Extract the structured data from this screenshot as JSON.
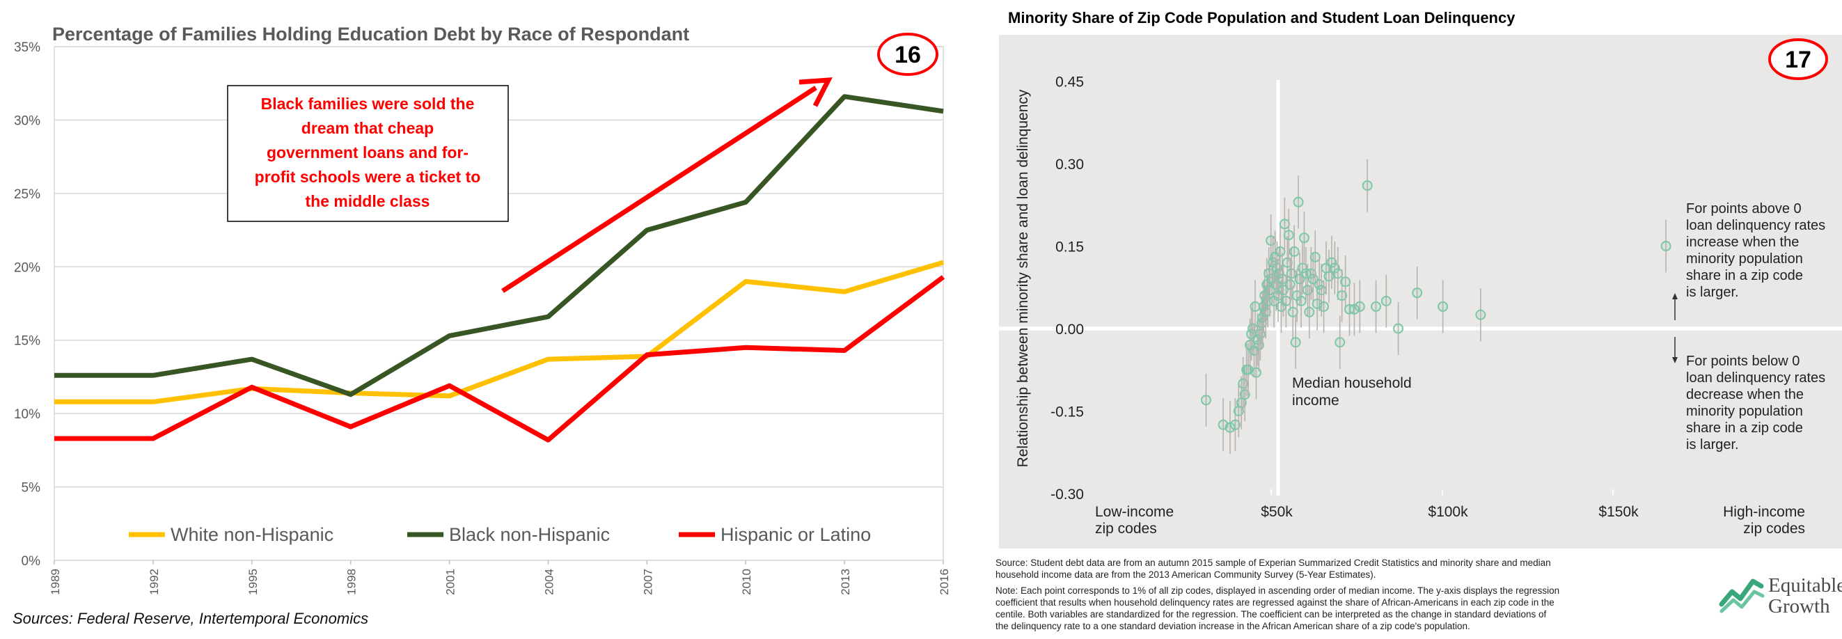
{
  "left": {
    "title": "Percentage of Families Holding Education Debt by Race of Respondant",
    "badge": "16",
    "annotation_lines": [
      "Black families were sold the",
      "dream that cheap",
      "government loans and for-",
      "profit schools were a ticket to",
      "the middle class"
    ],
    "sources": "Sources: Federal Reserve, Intertemporal Economics",
    "colors": {
      "white": "#FFC000",
      "black": "#375623",
      "hispanic": "#FF0000",
      "arrow": "#FF0000"
    }
  },
  "right": {
    "title": "Minority Share of Zip Code Population and Student Loan Delinquency",
    "badge": "17",
    "median_label_lines": [
      "Median household",
      "income"
    ],
    "above_note_lines": [
      "For points above 0",
      "loan delinquency rates",
      "increase when the",
      "minority population",
      "share in a zip code",
      "is larger."
    ],
    "below_note_lines": [
      "For points below 0",
      "loan delinquency rates",
      "decrease when the",
      "minority population",
      "share in a zip code",
      "is larger."
    ],
    "source_lines": [
      "Source: Student debt data are from an autumn 2015 sample of Experian Summarized Credit Statistics and minority share and median",
      "household income data are from the 2013 American Community Survey (5-Year Estimates)."
    ],
    "note_lines": [
      "Note: Each point corresponds to 1% of all zip codes, displayed in ascending order of median income. The y-axis displays the regression",
      "coefficient that results when household delinquency rates are regressed against the share of African-Americans in each zip code in the",
      "centile. Both variables are standardized for the regression. The coefficient can be interpreted as the change in standard deviations of",
      "the delinquency rate to a one standard deviation increase in the African American share of a zip code's population."
    ],
    "logo_lines": [
      "Equitable",
      "Growth"
    ],
    "colors": {
      "point": "#7CC7A8",
      "panel_bg": "#EAE8E6",
      "error_bar": "#B5B2AF"
    }
  },
  "chart_data": [
    {
      "type": "line",
      "title": "Percentage of Families Holding Education Debt by Race of Respondant",
      "categories": [
        "1989",
        "1992",
        "1995",
        "1998",
        "2001",
        "2004",
        "2007",
        "2010",
        "2013",
        "2016"
      ],
      "y_ticks": [
        "0%",
        "5%",
        "10%",
        "15%",
        "20%",
        "25%",
        "30%",
        "35%"
      ],
      "ylim": [
        0,
        35
      ],
      "y_unit": "%",
      "grid": true,
      "legend_position": "bottom",
      "series": [
        {
          "name": "White non-Hispanic",
          "color": "#FFC000",
          "values": [
            10.8,
            10.8,
            11.7,
            11.4,
            11.2,
            13.7,
            13.9,
            19.0,
            18.3,
            20.3
          ]
        },
        {
          "name": "Black non-Hispanic",
          "color": "#375623",
          "values": [
            12.6,
            12.6,
            13.7,
            11.3,
            15.3,
            16.6,
            22.5,
            24.4,
            31.6,
            30.6
          ]
        },
        {
          "name": "Hispanic or Latino",
          "color": "#FF0000",
          "values": [
            8.3,
            8.3,
            11.8,
            9.1,
            11.9,
            8.2,
            14.0,
            14.5,
            14.3,
            19.3
          ]
        }
      ]
    },
    {
      "type": "scatter",
      "title": "Minority Share of Zip Code Population and Student Loan Delinquency",
      "ylabel": "Relationship between minority share and loan delinquency",
      "y_ticks": [
        "0.45",
        "0.30",
        "0.15",
        "0.00",
        "-0.15",
        "-0.30"
      ],
      "ylim": [
        -0.3,
        0.45
      ],
      "x_ticks": [
        "Low-income zip codes",
        "$50k",
        "$100k",
        "$150k",
        "High-income zip codes"
      ],
      "x_unit": "median household income ($k)",
      "xlim": [
        30,
        175
      ],
      "reference_lines": {
        "x": 52,
        "y": 0
      },
      "points": [
        {
          "x": 31,
          "y": -0.13
        },
        {
          "x": 36,
          "y": -0.175
        },
        {
          "x": 38,
          "y": -0.18
        },
        {
          "x": 39.5,
          "y": -0.175
        },
        {
          "x": 40.5,
          "y": -0.15
        },
        {
          "x": 41.3,
          "y": -0.135
        },
        {
          "x": 41.8,
          "y": -0.1
        },
        {
          "x": 42.3,
          "y": -0.12
        },
        {
          "x": 42.8,
          "y": -0.075
        },
        {
          "x": 43.3,
          "y": -0.075
        },
        {
          "x": 43.8,
          "y": -0.03
        },
        {
          "x": 44.2,
          "y": -0.01
        },
        {
          "x": 44.6,
          "y": 0.0
        },
        {
          "x": 45.0,
          "y": -0.04
        },
        {
          "x": 45.3,
          "y": 0.04
        },
        {
          "x": 45.6,
          "y": -0.08
        },
        {
          "x": 46.0,
          "y": -0.02
        },
        {
          "x": 46.4,
          "y": -0.03
        },
        {
          "x": 46.8,
          "y": -0.01
        },
        {
          "x": 47.2,
          "y": 0.01
        },
        {
          "x": 47.5,
          "y": 0.02
        },
        {
          "x": 47.8,
          "y": 0.04
        },
        {
          "x": 48.1,
          "y": 0.06
        },
        {
          "x": 48.4,
          "y": 0.03
        },
        {
          "x": 48.7,
          "y": 0.08
        },
        {
          "x": 49.0,
          "y": 0.05
        },
        {
          "x": 49.3,
          "y": 0.1
        },
        {
          "x": 49.6,
          "y": 0.07
        },
        {
          "x": 49.9,
          "y": 0.16
        },
        {
          "x": 50.2,
          "y": 0.09
        },
        {
          "x": 50.5,
          "y": 0.12
        },
        {
          "x": 50.8,
          "y": 0.05
        },
        {
          "x": 51.1,
          "y": 0.13
        },
        {
          "x": 51.4,
          "y": 0.08
        },
        {
          "x": 51.7,
          "y": 0.11
        },
        {
          "x": 52.0,
          "y": 0.06
        },
        {
          "x": 52.3,
          "y": 0.1
        },
        {
          "x": 52.6,
          "y": 0.14
        },
        {
          "x": 52.9,
          "y": 0.04
        },
        {
          "x": 53.2,
          "y": 0.09
        },
        {
          "x": 53.5,
          "y": 0.07
        },
        {
          "x": 53.9,
          "y": 0.19
        },
        {
          "x": 54.3,
          "y": 0.05
        },
        {
          "x": 54.7,
          "y": 0.12
        },
        {
          "x": 55.1,
          "y": 0.17
        },
        {
          "x": 55.5,
          "y": 0.08
        },
        {
          "x": 55.9,
          "y": 0.1
        },
        {
          "x": 56.3,
          "y": 0.03
        },
        {
          "x": 56.7,
          "y": 0.14
        },
        {
          "x": 57.1,
          "y": -0.025
        },
        {
          "x": 57.5,
          "y": 0.06
        },
        {
          "x": 57.9,
          "y": 0.23
        },
        {
          "x": 58.3,
          "y": 0.09
        },
        {
          "x": 58.7,
          "y": 0.05
        },
        {
          "x": 59.1,
          "y": 0.11
        },
        {
          "x": 59.6,
          "y": 0.165
        },
        {
          "x": 60.1,
          "y": 0.1
        },
        {
          "x": 60.6,
          "y": 0.07
        },
        {
          "x": 61.1,
          "y": 0.03
        },
        {
          "x": 61.6,
          "y": 0.1
        },
        {
          "x": 62.2,
          "y": 0.09
        },
        {
          "x": 62.8,
          "y": 0.13
        },
        {
          "x": 63.4,
          "y": 0.045
        },
        {
          "x": 64.0,
          "y": 0.08
        },
        {
          "x": 64.6,
          "y": 0.07
        },
        {
          "x": 65.3,
          "y": 0.04
        },
        {
          "x": 66.0,
          "y": 0.11
        },
        {
          "x": 66.8,
          "y": 0.095
        },
        {
          "x": 67.6,
          "y": 0.12
        },
        {
          "x": 68.5,
          "y": 0.11
        },
        {
          "x": 69.4,
          "y": 0.1
        },
        {
          "x": 70.0,
          "y": -0.025
        },
        {
          "x": 70.6,
          "y": 0.06
        },
        {
          "x": 71.6,
          "y": 0.085
        },
        {
          "x": 72.8,
          "y": 0.035
        },
        {
          "x": 74.2,
          "y": 0.035
        },
        {
          "x": 75.8,
          "y": 0.04
        },
        {
          "x": 78.0,
          "y": 0.26
        },
        {
          "x": 80.5,
          "y": 0.04
        },
        {
          "x": 83.5,
          "y": 0.05
        },
        {
          "x": 87.0,
          "y": 0.0
        },
        {
          "x": 92.5,
          "y": 0.065
        },
        {
          "x": 100.0,
          "y": 0.04
        },
        {
          "x": 111.0,
          "y": 0.025
        },
        {
          "x": 165.0,
          "y": 0.15
        }
      ]
    }
  ]
}
